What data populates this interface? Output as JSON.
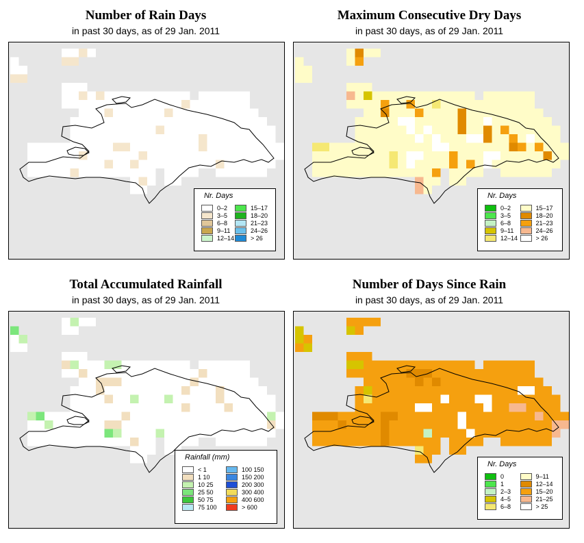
{
  "panels": [
    {
      "id": "rain-days",
      "title": "Number of Rain Days",
      "subtitle": "in past 30 days, as of  29 Jan. 2011",
      "legend": {
        "title": "Nr. Days",
        "items": [
          {
            "label": "0–2",
            "color": "#ffffff"
          },
          {
            "label": "3–5",
            "color": "#f5e6cc"
          },
          {
            "label": "6–8",
            "color": "#e0c79a"
          },
          {
            "label": "9–11",
            "color": "#c9a74f"
          },
          {
            "label": "12–14",
            "color": "#ccf5cc"
          },
          {
            "label": "15–17",
            "color": "#4de64d"
          },
          {
            "label": "18–20",
            "color": "#1fb31f"
          },
          {
            "label": "21–23",
            "color": "#b3e6f5"
          },
          {
            "label": "24–26",
            "color": "#6bc0eb"
          },
          {
            "label": "> 26",
            "color": "#1f8ad6"
          }
        ]
      },
      "cell_counts": {
        "3–5": 22
      }
    },
    {
      "id": "max-dry",
      "title": "Maximum Consecutive Dry Days",
      "subtitle": "in past 30 days, as of  29 Jan. 2011",
      "legend": {
        "title": "Nr. Days",
        "items": [
          {
            "label": "0–2",
            "color": "#0fbf0f"
          },
          {
            "label": "3–5",
            "color": "#4de64d"
          },
          {
            "label": "6–8",
            "color": "#c4f2c4"
          },
          {
            "label": "9–11",
            "color": "#d6c400"
          },
          {
            "label": "12–14",
            "color": "#f5e873"
          },
          {
            "label": "15–17",
            "color": "#fffcc8"
          },
          {
            "label": "18–20",
            "color": "#e08a00"
          },
          {
            "label": "21–23",
            "color": "#f5a00f"
          },
          {
            "label": "24–26",
            "color": "#f7b88f"
          },
          {
            "label": "> 26",
            "color": "#ffffff"
          }
        ]
      }
    },
    {
      "id": "total-rain",
      "title": "Total Accumulated Rainfall",
      "subtitle": "in past 30 days, as of  29 Jan. 2011",
      "legend": {
        "title": "Rainfall (mm)",
        "items": [
          {
            "label": "< 1",
            "color": "#ffffff"
          },
          {
            "label": "1    10",
            "color": "#f2dfbf"
          },
          {
            "label": "10    25",
            "color": "#c4f2b0"
          },
          {
            "label": "25    50",
            "color": "#7ce67c"
          },
          {
            "label": "50    75",
            "color": "#3cc83c"
          },
          {
            "label": "75    100",
            "color": "#b8eaf5"
          },
          {
            "label": "100    150",
            "color": "#66b8ee"
          },
          {
            "label": "150    200",
            "color": "#3a86e0"
          },
          {
            "label": "200    300",
            "color": "#1f4fd6"
          },
          {
            "label": "300    400",
            "color": "#f2dc5a"
          },
          {
            "label": "400    600",
            "color": "#f5a00f"
          },
          {
            "label": "> 600",
            "color": "#f03c1e"
          }
        ]
      }
    },
    {
      "id": "days-since",
      "title": "Number of Days Since Rain",
      "subtitle": "in past 30 days, as of  29 Jan. 2011",
      "legend": {
        "title": "Nr. Days",
        "items": [
          {
            "label": "0",
            "color": "#0fbf0f"
          },
          {
            "label": "1",
            "color": "#4de64d"
          },
          {
            "label": "2–3",
            "color": "#c4f2c4"
          },
          {
            "label": "4–5",
            "color": "#d6c400"
          },
          {
            "label": "6–8",
            "color": "#f5e873"
          },
          {
            "label": "9–11",
            "color": "#fffcc8"
          },
          {
            "label": "12–14",
            "color": "#e08a00"
          },
          {
            "label": "15–20",
            "color": "#f5a00f"
          },
          {
            "label": "21–25",
            "color": "#f7b88f"
          },
          {
            "label": "> 25",
            "color": "#ffffff"
          }
        ]
      }
    }
  ]
}
